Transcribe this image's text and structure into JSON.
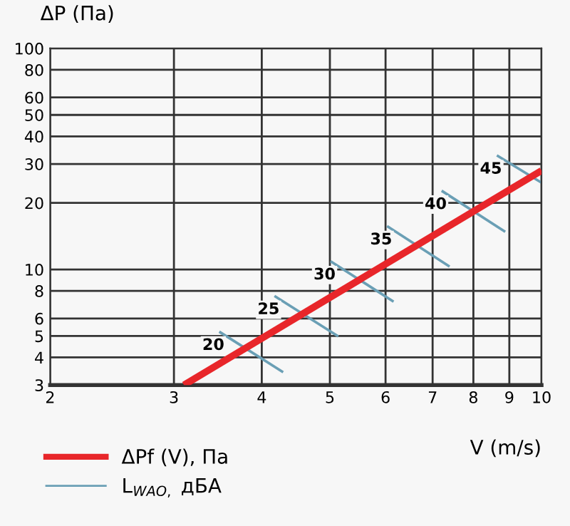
{
  "chart_data": {
    "type": "line",
    "ylabel": "ΔP (Па)",
    "xlabel": "V (m/s)",
    "log": "xy",
    "xlim": [
      2,
      10
    ],
    "ylim": [
      3,
      100
    ],
    "xticks": [
      2,
      3,
      4,
      5,
      6,
      7,
      8,
      9,
      10
    ],
    "yticks": [
      3,
      4,
      5,
      6,
      8,
      10,
      20,
      30,
      40,
      50,
      60,
      80,
      100
    ],
    "grid": true,
    "legend": "bottom left",
    "marker": "none",
    "line_style": "solid",
    "series": [
      {
        "name": "ΔPf (V), Па",
        "color": "#e8262a",
        "x": [
          3.1,
          10
        ],
        "values": [
          3,
          28
        ]
      },
      {
        "name": "L$_{WAO,}$ дБА",
        "color": "#6a9fb5",
        "x": [
          3.48,
          4.29
        ],
        "values": [
          5.23,
          3.43
        ]
      },
      {
        "color": "#6a9fb5",
        "x": [
          4.17,
          5.14
        ],
        "values": [
          7.59,
          4.98
        ]
      },
      {
        "color": "#6a9fb5",
        "x": [
          5.01,
          6.16
        ],
        "values": [
          10.9,
          7.15
        ]
      },
      {
        "color": "#6a9fb5",
        "x": [
          6.03,
          7.4
        ],
        "values": [
          15.7,
          10.3
        ]
      },
      {
        "color": "#6a9fb5",
        "x": [
          7.21,
          8.88
        ],
        "values": [
          22.7,
          14.8
        ]
      },
      {
        "color": "#6a9fb5",
        "x": [
          8.64,
          10
        ],
        "values": [
          32.8,
          24.7
        ]
      }
    ],
    "annotations": [
      {
        "text": "20",
        "x": 3.48,
        "y": 5.23
      },
      {
        "text": "25",
        "x": 4.17,
        "y": 7.59
      },
      {
        "text": "30",
        "x": 5.01,
        "y": 10.9
      },
      {
        "text": "35",
        "x": 6.03,
        "y": 15.7
      },
      {
        "text": "40",
        "x": 7.21,
        "y": 22.7
      },
      {
        "text": "45",
        "x": 8.64,
        "y": 32.8
      }
    ]
  }
}
